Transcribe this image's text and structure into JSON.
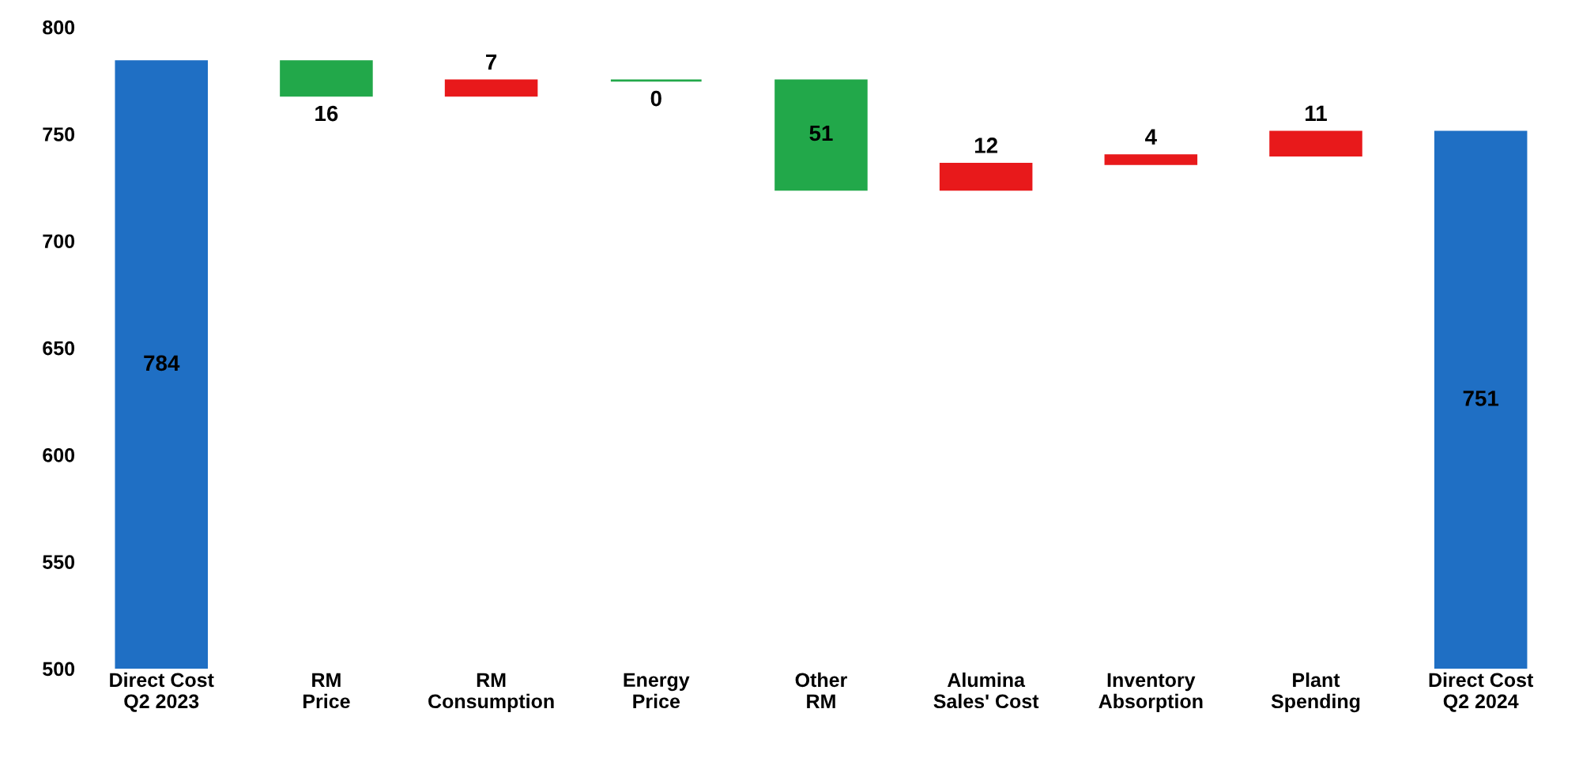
{
  "chart_data": {
    "type": "bar",
    "categories": [
      "Direct Cost\nQ2 2023",
      "RM\nPrice",
      "RM\nConsumption",
      "Energy\nPrice",
      "Other\nRM",
      "Alumina\nSales' Cost",
      "Inventory\nAbsorption",
      "Plant\nSpending",
      "Direct Cost\nQ2 2024"
    ],
    "values": [
      784,
      -16,
      7,
      0,
      -51,
      12,
      4,
      11,
      751
    ],
    "base": [
      0,
      784,
      768,
      775,
      775,
      724,
      736,
      740,
      0
    ],
    "value_labels": [
      "784",
      "16",
      "7",
      "0",
      "51",
      "12",
      "4",
      "11",
      "751"
    ],
    "colors": [
      "#1f6fc4",
      "#22a84a",
      "#e8191b",
      "#22a84a",
      "#22a84a",
      "#e8191b",
      "#e8191b",
      "#e8191b",
      "#1f6fc4"
    ],
    "ylim": [
      500,
      800
    ],
    "yticks": [
      500,
      550,
      600,
      650,
      700,
      750,
      800
    ],
    "grid": false,
    "legend": false
  }
}
